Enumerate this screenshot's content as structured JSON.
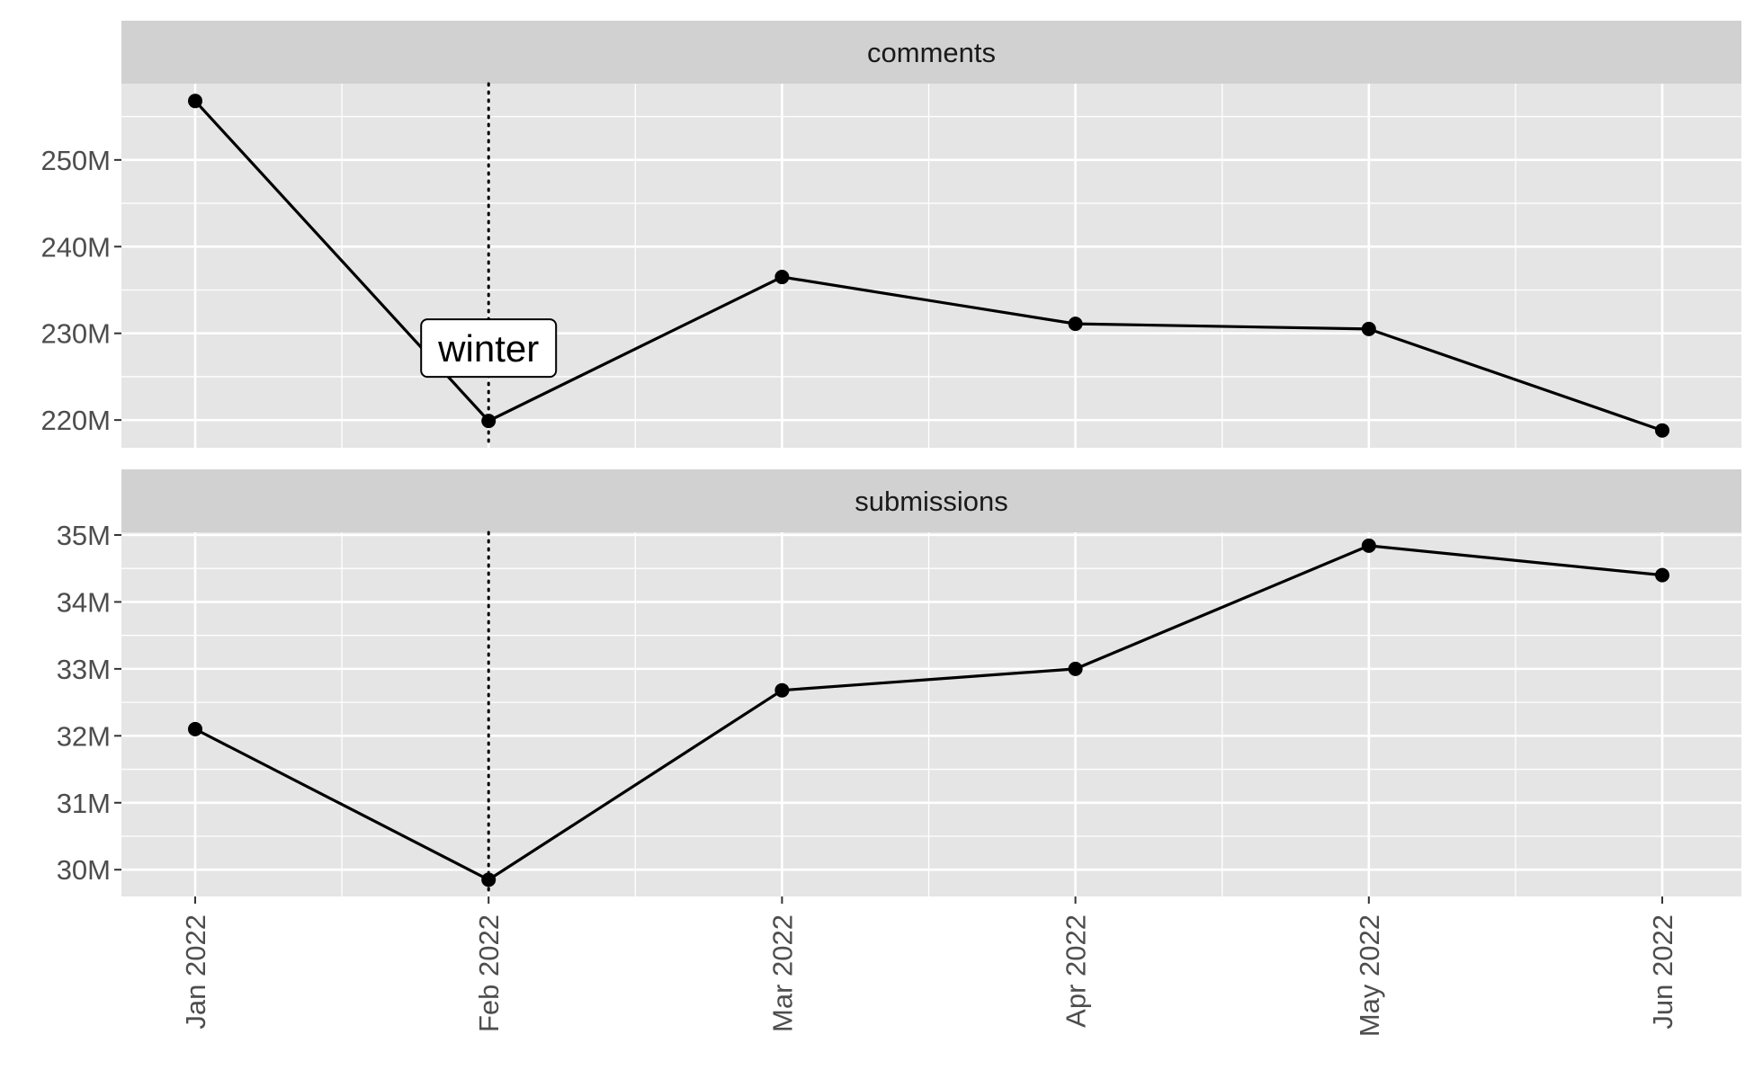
{
  "chart_data": {
    "type": "line",
    "x": [
      "2022-01",
      "2022-02",
      "2022-03",
      "2022-04",
      "2022-05",
      "2022-06"
    ],
    "x_tick_labels": [
      "Jan 2022",
      "Feb 2022",
      "Mar 2022",
      "Apr 2022",
      "May 2022",
      "Jun 2022"
    ],
    "panels": [
      {
        "strip": "comments",
        "ylim": [
          216.8,
          258.8
        ],
        "y_ticks": [
          220,
          230,
          240,
          250
        ],
        "y_tick_labels": [
          "220M",
          "230M",
          "240M",
          "250M"
        ],
        "values": [
          256.8,
          219.9,
          236.5,
          231.1,
          230.5,
          218.8
        ]
      },
      {
        "strip": "submissions",
        "ylim": [
          29.6,
          35.04
        ],
        "y_ticks": [
          30,
          31,
          32,
          33,
          34,
          35
        ],
        "y_tick_labels": [
          "30M",
          "31M",
          "32M",
          "33M",
          "34M",
          "35M"
        ],
        "values": [
          32.1,
          29.85,
          32.68,
          33.0,
          34.84,
          34.4
        ]
      }
    ],
    "reference_line": {
      "x": "2022-02",
      "style": "dotted"
    },
    "annotation": {
      "text": "winter",
      "panel": 0,
      "x": "2022-02",
      "y": 228.3
    },
    "colors": {
      "panel_bg": "#e5e5e5",
      "strip_bg": "#d1d1d1",
      "grid": "#ffffff",
      "line": "#000000",
      "point": "#000000"
    },
    "grid": true,
    "legend": "none"
  }
}
